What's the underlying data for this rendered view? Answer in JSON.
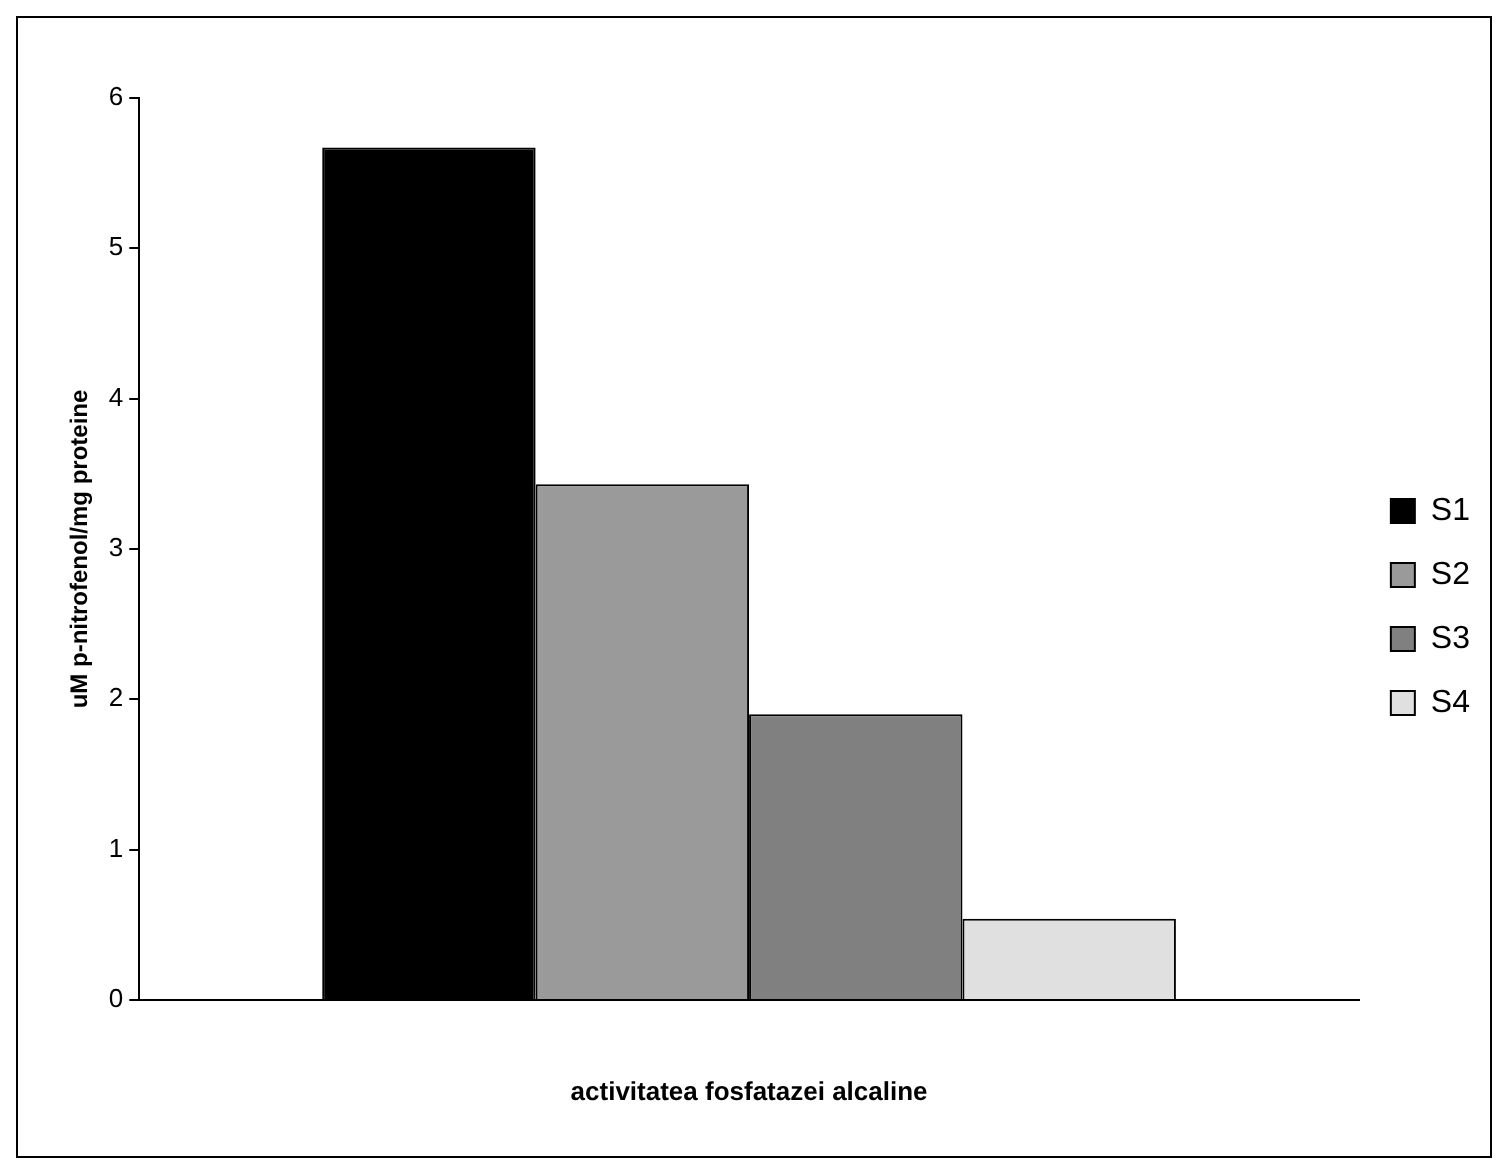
{
  "chart_data": {
    "type": "bar",
    "xlabel": "activitatea fosfatazei alcaline",
    "ylabel": "uM p-nitrofenol/mg proteine",
    "categories": [
      null
    ],
    "series": [
      {
        "name": "S1",
        "color": "#000000",
        "values": [
          5.67
        ]
      },
      {
        "name": "S2",
        "color": "#9a9a9a",
        "values": [
          3.43
        ]
      },
      {
        "name": "S3",
        "color": "#808080",
        "values": [
          1.9
        ]
      },
      {
        "name": "S4",
        "color": "#e0e0e0",
        "values": [
          0.54
        ]
      }
    ],
    "ylim": [
      0,
      6
    ],
    "yticks": [
      0,
      1,
      2,
      3,
      4,
      5,
      6
    ],
    "grid": false,
    "legend": "right"
  }
}
